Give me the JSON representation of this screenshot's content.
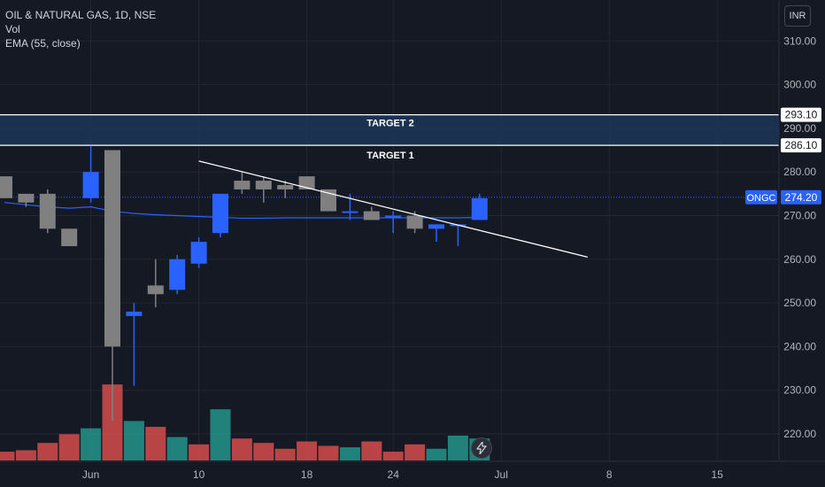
{
  "legend": {
    "symbol_line": "OIL & NATURAL GAS, 1D, NSE",
    "volume_label": "Vol",
    "ema_label": "EMA (55, close)"
  },
  "currency_button": "INR",
  "colors": {
    "background": "#151924",
    "up": "#2962ff",
    "down": "#808080",
    "vol_up": "#26a69a",
    "vol_down": "#ef5350",
    "ema": "#2962ff",
    "trendline": "#ffffff",
    "target_zone": "#1e3a5f",
    "axis_text": "#b2b5be"
  },
  "chart_data": {
    "type": "candlestick",
    "title": "OIL & NATURAL GAS, 1D, NSE",
    "y_axis": {
      "min": 214,
      "max": 319,
      "ticks": [
        220,
        230,
        240,
        250,
        260,
        270,
        280,
        290,
        300,
        310
      ],
      "tick_labels": [
        "220.00",
        "230.00",
        "240.00",
        "250.00",
        "260.00",
        "270.00",
        "280.00",
        "290.00",
        "300.00",
        "310.00"
      ]
    },
    "x_axis": {
      "labels": [
        "Jun",
        "10",
        "18",
        "24",
        "Jul",
        "8",
        "15"
      ],
      "label_bar_index": [
        4,
        9,
        14,
        18,
        23,
        28,
        33
      ]
    },
    "candles": [
      {
        "o": 279,
        "h": 279,
        "l": 274,
        "c": 274
      },
      {
        "o": 275,
        "h": 275,
        "l": 272,
        "c": 273
      },
      {
        "o": 275,
        "h": 276,
        "l": 266,
        "c": 267
      },
      {
        "o": 267,
        "h": 267,
        "l": 263,
        "c": 263
      },
      {
        "o": 274,
        "h": 286,
        "l": 273,
        "c": 280
      },
      {
        "o": 285,
        "h": 285,
        "l": 223,
        "c": 240
      },
      {
        "o": 247,
        "h": 250,
        "l": 231,
        "c": 248
      },
      {
        "o": 254,
        "h": 260,
        "l": 249,
        "c": 252
      },
      {
        "o": 253,
        "h": 261,
        "l": 252,
        "c": 260
      },
      {
        "o": 259,
        "h": 265,
        "l": 258,
        "c": 264
      },
      {
        "o": 266,
        "h": 275,
        "l": 265,
        "c": 275
      },
      {
        "o": 278,
        "h": 280,
        "l": 275,
        "c": 276
      },
      {
        "o": 278,
        "h": 279,
        "l": 273,
        "c": 276
      },
      {
        "o": 277,
        "h": 278,
        "l": 274,
        "c": 276
      },
      {
        "o": 279,
        "h": 279,
        "l": 276,
        "c": 276
      },
      {
        "o": 276,
        "h": 276,
        "l": 271,
        "c": 271
      },
      {
        "o": 271,
        "h": 275,
        "l": 269,
        "c": 271
      },
      {
        "o": 271,
        "h": 272,
        "l": 269,
        "c": 269
      },
      {
        "o": 270,
        "h": 271,
        "l": 266,
        "c": 270
      },
      {
        "o": 270,
        "h": 271,
        "l": 266,
        "c": 267
      },
      {
        "o": 267,
        "h": 268,
        "l": 264,
        "c": 268
      },
      {
        "o": 268,
        "h": 268,
        "l": 263,
        "c": 268
      },
      {
        "o": 269,
        "h": 275,
        "l": 269,
        "c": 274
      }
    ],
    "volume": [
      {
        "v": 3,
        "up": false
      },
      {
        "v": 3.5,
        "up": false
      },
      {
        "v": 6,
        "up": false
      },
      {
        "v": 9,
        "up": false
      },
      {
        "v": 11,
        "up": true
      },
      {
        "v": 26,
        "up": false
      },
      {
        "v": 13.5,
        "up": true
      },
      {
        "v": 11.5,
        "up": false
      },
      {
        "v": 8,
        "up": true
      },
      {
        "v": 5.5,
        "up": false
      },
      {
        "v": 17.5,
        "up": true
      },
      {
        "v": 7.5,
        "up": false
      },
      {
        "v": 6,
        "up": false
      },
      {
        "v": 4,
        "up": false
      },
      {
        "v": 6.5,
        "up": false
      },
      {
        "v": 5,
        "up": false
      },
      {
        "v": 4.5,
        "up": true
      },
      {
        "v": 6.5,
        "up": false
      },
      {
        "v": 3,
        "up": false
      },
      {
        "v": 5.5,
        "up": false
      },
      {
        "v": 4,
        "up": true
      },
      {
        "v": 8.5,
        "up": true
      },
      {
        "v": 7.5,
        "up": true
      }
    ],
    "ema": [
      273,
      272.5,
      272,
      271.7,
      272,
      271,
      270.5,
      270.2,
      270,
      269.8,
      269.6,
      269.4,
      269.4,
      269.5,
      269.5,
      269.5,
      269.5,
      269.5,
      269.5,
      269.5,
      269.5,
      269.5,
      269.6
    ],
    "trendline": {
      "from": {
        "bar": 9,
        "price": 282.5
      },
      "to": {
        "bar": 27,
        "price": 260.5
      }
    },
    "target_zone": {
      "low": 286.1,
      "high": 293.1
    },
    "targets": [
      {
        "label": "TARGET 2",
        "price": 293.1,
        "price_label": "293.10"
      },
      {
        "label": "TARGET 1",
        "price": 286.1,
        "price_label": "286.10"
      }
    ],
    "last_price": {
      "ticker": "ONGC",
      "value": 274.2,
      "label": "274.20"
    }
  }
}
